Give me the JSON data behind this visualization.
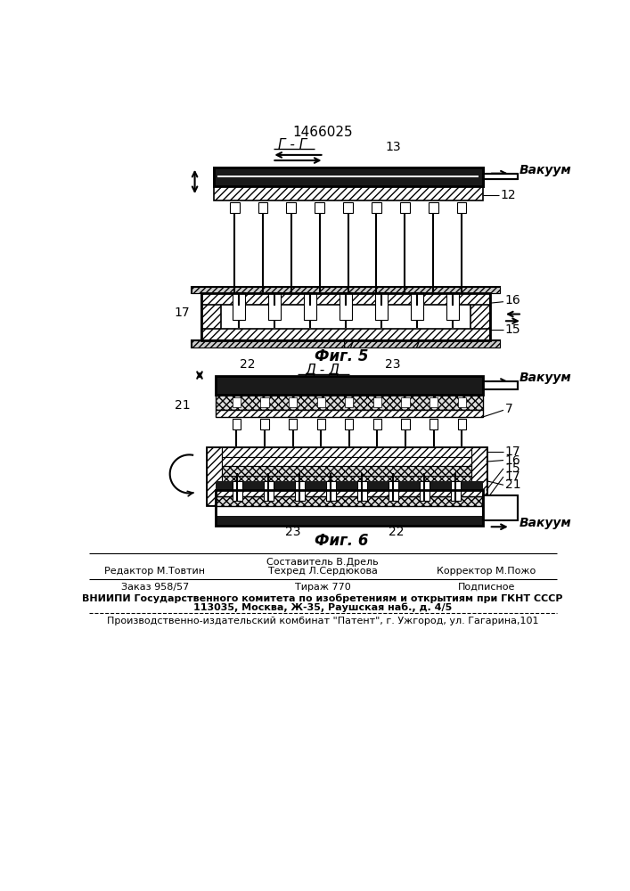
{
  "patent_number": "1466025",
  "fig5_label": "Фиг. 5",
  "fig6_label": "Фиг. 6",
  "section_g": "Г - Г",
  "section_d": "Д - Д",
  "vacuum_label": "Вакуум",
  "footer_line1_col1": "Редактор М.Товтин",
  "footer_compose": "Составитель В.Дрель",
  "footer_techred": "Техред Л.Сердюкова",
  "footer_line1_col3": "Корректор М.Пожо",
  "footer_line2_col1": "Заказ 958/57",
  "footer_line2_col2": "Тираж 770",
  "footer_line2_col3": "Подписное",
  "footer_line3": "ВНИИПИ Государственного комитета по изобретениям и открытиям при ГКНТ СССР",
  "footer_line4": "113035, Москва, Ж-35, Раушская наб., д. 4/5",
  "footer_line5": "Производственно-издательский комбинат \"Патент\", г. Ужгород, ул. Гагарина,101",
  "bg_color": "#ffffff",
  "line_color": "#000000"
}
